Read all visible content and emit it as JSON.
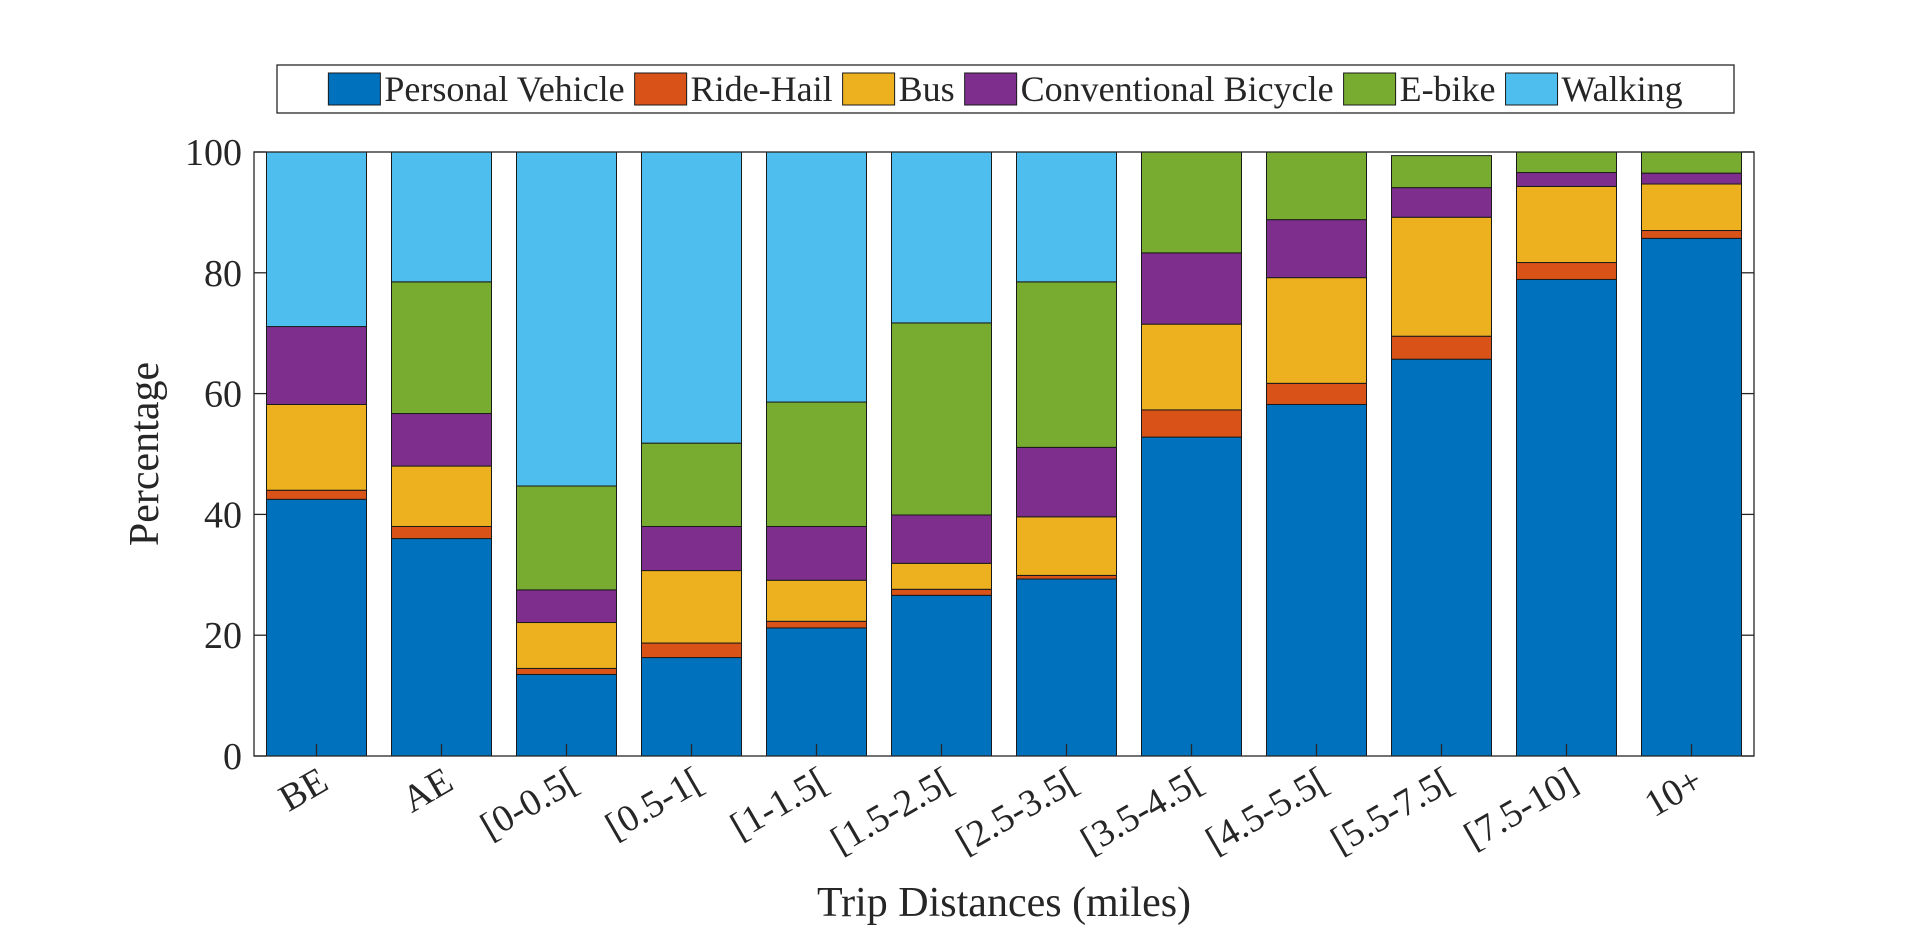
{
  "chart_data": {
    "type": "bar",
    "stacked": true,
    "xlabel": "Trip Distances (miles)",
    "ylabel": "Percentage",
    "ylim": [
      0,
      100
    ],
    "yticks": [
      0,
      20,
      40,
      60,
      80,
      100
    ],
    "legend_placement": "top",
    "grid": false,
    "categories": [
      "BE",
      "AE",
      "[0-0.5[",
      "[0.5-1[",
      "[1-1.5[",
      "[1.5-2.5[",
      "[2.5-3.5[",
      "[3.5-4.5[",
      "[4.5-5.5[",
      "[5.5-7.5[",
      "[7.5-10]",
      "10+"
    ],
    "series": [
      {
        "name": "Personal Vehicle",
        "color": "#0072BD",
        "values": [
          42.5,
          36,
          13.5,
          16.3,
          21.2,
          26.6,
          29.3,
          52.8,
          58.2,
          65.7,
          78.9,
          85.7
        ]
      },
      {
        "name": "Ride-Hail",
        "color": "#D95319",
        "values": [
          1.5,
          2,
          1,
          2.4,
          1.1,
          1.0,
          0.6,
          4.5,
          3.5,
          3.8,
          2.8,
          1.3
        ]
      },
      {
        "name": "Bus",
        "color": "#EDB120",
        "values": [
          14.2,
          10,
          7.6,
          12.0,
          6.8,
          4.3,
          9.7,
          14.2,
          17.5,
          19.7,
          12.6,
          7.7
        ]
      },
      {
        "name": "Conventional Bicycle",
        "color": "#7E2F8E",
        "values": [
          12.9,
          8.7,
          5.4,
          7.3,
          8.9,
          8.0,
          11.5,
          11.8,
          9.6,
          4.9,
          2.3,
          1.8
        ]
      },
      {
        "name": "E-bike",
        "color": "#77AC30",
        "values": [
          0,
          21.8,
          17.2,
          13.8,
          20.6,
          31.8,
          27.4,
          16.7,
          11.2,
          5.3,
          3.4,
          3.5
        ]
      },
      {
        "name": "Walking",
        "color": "#4DBEEE",
        "values": [
          28.9,
          21.5,
          55.3,
          48.2,
          41.4,
          28.3,
          21.5,
          0,
          0,
          0,
          0,
          0
        ]
      }
    ]
  }
}
